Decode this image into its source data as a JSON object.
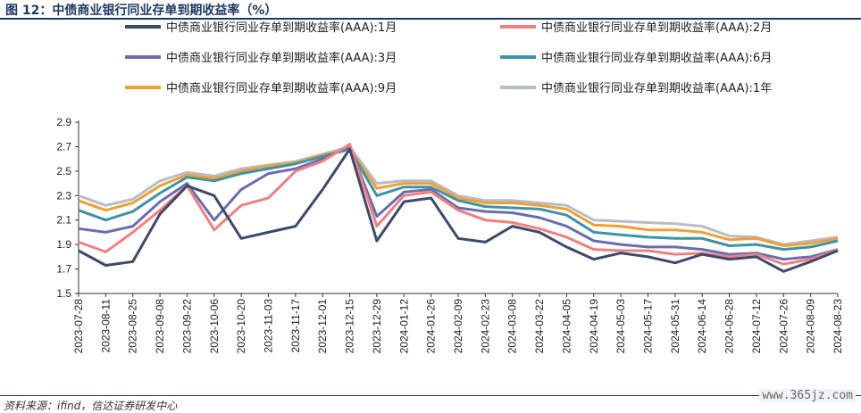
{
  "header": {
    "figure_title": "图 12：中债商业银行同业存单到期收益率（%）"
  },
  "footer": {
    "source": "资料来源：ifind，信达证券研发中心",
    "watermark": "www.365jz.com"
  },
  "chart_data": {
    "type": "line",
    "title": "图 12：中债商业银行同业存单到期收益率（%）",
    "xlabel": "",
    "ylabel": "",
    "ylim": [
      1.5,
      2.9
    ],
    "yticks": [
      "2.9",
      "2.7",
      "2.5",
      "2.3",
      "2.1",
      "1.9",
      "1.7",
      "1.5"
    ],
    "grid": false,
    "legend_position": "top",
    "x_tick_labels": [
      "2023-07-28",
      "2023-08-11",
      "2023-08-25",
      "2023-09-08",
      "2023-09-22",
      "2023-10-06",
      "2023-10-20",
      "2023-11-03",
      "2023-11-17",
      "2023-12-01",
      "2023-12-15",
      "2023-12-29",
      "2024-01-12",
      "2024-01-26",
      "2024-02-09",
      "2024-02-23",
      "2024-03-08",
      "2024-03-22",
      "2024-04-05",
      "2024-04-19",
      "2024-05-03",
      "2024-05-17",
      "2024-05-31",
      "2024-06-14",
      "2024-06-28",
      "2024-07-12",
      "2024-07-26",
      "2024-08-09",
      "2024-08-23"
    ],
    "x": [
      "2023-07-28",
      "2023-08-11",
      "2023-08-25",
      "2023-09-08",
      "2023-09-22",
      "2023-10-06",
      "2023-10-20",
      "2023-11-03",
      "2023-11-17",
      "2023-12-01",
      "2023-12-15",
      "2023-12-29",
      "2024-01-12",
      "2024-01-26",
      "2024-02-09",
      "2024-02-23",
      "2024-03-08",
      "2024-03-22",
      "2024-04-05",
      "2024-04-19",
      "2024-05-03",
      "2024-05-17",
      "2024-05-31",
      "2024-06-14",
      "2024-06-28",
      "2024-07-12",
      "2024-07-26",
      "2024-08-09",
      "2024-08-23"
    ],
    "series": [
      {
        "name": "中债商业银行同业存单到期收益率(AAA):1月",
        "color": "#3d4a6b",
        "values": [
          1.85,
          1.73,
          1.76,
          2.15,
          2.38,
          2.3,
          1.95,
          2.0,
          2.05,
          2.35,
          2.68,
          1.93,
          2.25,
          2.28,
          1.95,
          1.92,
          2.05,
          2.0,
          1.88,
          1.78,
          1.83,
          1.8,
          1.75,
          1.82,
          1.78,
          1.8,
          1.68,
          1.76,
          1.85
        ]
      },
      {
        "name": "中债商业银行同业存单到期收益率(AAA):2月",
        "color": "#f08080",
        "values": [
          1.92,
          1.84,
          2.0,
          2.18,
          2.38,
          2.02,
          2.22,
          2.28,
          2.5,
          2.58,
          2.72,
          2.05,
          2.3,
          2.33,
          2.18,
          2.1,
          2.08,
          2.03,
          1.96,
          1.86,
          1.85,
          1.85,
          1.82,
          1.83,
          1.8,
          1.82,
          1.74,
          1.78,
          1.86
        ]
      },
      {
        "name": "中债商业银行同业存单到期收益率(AAA):3月",
        "color": "#6a6db0",
        "values": [
          2.03,
          2.0,
          2.05,
          2.25,
          2.4,
          2.1,
          2.35,
          2.48,
          2.52,
          2.6,
          2.7,
          2.13,
          2.33,
          2.35,
          2.2,
          2.17,
          2.16,
          2.12,
          2.05,
          1.93,
          1.9,
          1.88,
          1.88,
          1.86,
          1.82,
          1.83,
          1.78,
          1.8,
          1.86
        ]
      },
      {
        "name": "中债商业银行同业存单到期收益率(AAA):6月",
        "color": "#3e93a8",
        "values": [
          2.18,
          2.1,
          2.17,
          2.32,
          2.45,
          2.42,
          2.48,
          2.52,
          2.56,
          2.62,
          2.68,
          2.3,
          2.37,
          2.37,
          2.26,
          2.21,
          2.2,
          2.19,
          2.14,
          2.0,
          1.98,
          1.96,
          1.95,
          1.95,
          1.89,
          1.9,
          1.86,
          1.88,
          1.93
        ]
      },
      {
        "name": "中债商业银行同业存单到期收益率(AAA):9月",
        "color": "#f0a030",
        "values": [
          2.26,
          2.18,
          2.24,
          2.38,
          2.47,
          2.44,
          2.5,
          2.54,
          2.57,
          2.63,
          2.68,
          2.36,
          2.4,
          2.4,
          2.28,
          2.24,
          2.24,
          2.22,
          2.19,
          2.06,
          2.05,
          2.02,
          2.02,
          2.0,
          1.94,
          1.95,
          1.89,
          1.91,
          1.95
        ]
      },
      {
        "name": "中债商业银行同业存单到期收益率(AAA):1年",
        "color": "#b8bcc8",
        "values": [
          2.3,
          2.22,
          2.27,
          2.42,
          2.49,
          2.46,
          2.52,
          2.55,
          2.58,
          2.64,
          2.7,
          2.4,
          2.42,
          2.42,
          2.3,
          2.26,
          2.26,
          2.24,
          2.22,
          2.1,
          2.09,
          2.08,
          2.07,
          2.05,
          1.97,
          1.96,
          1.9,
          1.93,
          1.96
        ]
      }
    ]
  }
}
